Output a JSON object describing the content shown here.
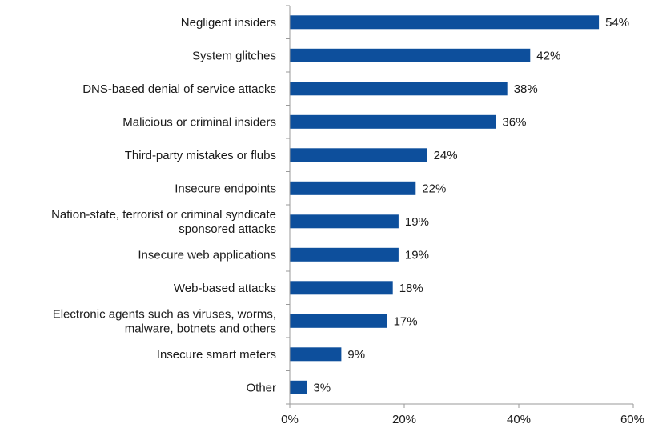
{
  "chart_data": {
    "type": "bar",
    "orientation": "horizontal",
    "title": "",
    "xlabel": "",
    "ylabel": "",
    "xlim": [
      0,
      60
    ],
    "x_ticks": [
      0,
      20,
      40,
      60
    ],
    "x_tick_labels": [
      "0%",
      "20%",
      "40%",
      "60%"
    ],
    "grid": false,
    "legend": "none",
    "bar_color": "#0d4f9c",
    "categories": [
      [
        "Negligent insiders"
      ],
      [
        "System glitches"
      ],
      [
        "DNS-based denial of service attacks"
      ],
      [
        "Malicious or criminal insiders"
      ],
      [
        "Third-party mistakes or flubs"
      ],
      [
        "Insecure endpoints"
      ],
      [
        "Nation-state, terrorist or criminal syndicate",
        "sponsored attacks"
      ],
      [
        "Insecure web applications"
      ],
      [
        "Web-based attacks"
      ],
      [
        "Electronic agents such as viruses, worms,",
        "malware, botnets and others"
      ],
      [
        "Insecure smart meters"
      ],
      [
        "Other"
      ]
    ],
    "values": [
      54,
      42,
      38,
      36,
      24,
      22,
      19,
      19,
      18,
      17,
      9,
      3
    ],
    "value_labels": [
      "54%",
      "42%",
      "38%",
      "36%",
      "24%",
      "22%",
      "19%",
      "19%",
      "18%",
      "17%",
      "9%",
      "3%"
    ]
  }
}
